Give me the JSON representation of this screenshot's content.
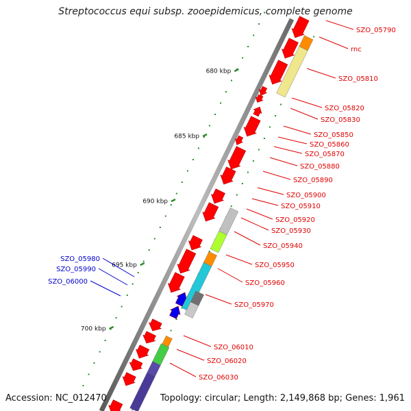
{
  "title": "Streptococcus equi subsp. zooepidemicus, complete genome",
  "footer": {
    "accession": "Accession: NC_012470",
    "summary": "Topology: circular; Length: 2,149,868 bp; Genes: 1,961"
  },
  "colors": {
    "backbone": "#8c8c8c",
    "gene_arrow": "#ff0000",
    "tick": "#2a8a2a",
    "label_forward": "#e00000",
    "label_reverse": "#0000cc",
    "leader_forward": "#e00000",
    "leader_reverse": "#0000cc"
  },
  "scale_ticks": [
    "680 kbp",
    "685 kbp",
    "690 kbp",
    "695 kbp",
    "700 kbp"
  ],
  "gene_labels_right": [
    "SZO_05790",
    "rnc",
    "SZO_05810",
    "SZO_05820",
    "SZO_05830",
    "SZO_05850",
    "SZO_05860",
    "SZO_05870",
    "SZO_05880",
    "SZO_05890",
    "SZO_05900",
    "SZO_05910",
    "SZO_05920",
    "SZO_05930",
    "SZO_05940",
    "SZO_05950",
    "SZO_05960",
    "SZO_05970",
    "SZO_06010",
    "SZO_06020",
    "SZO_06030"
  ],
  "gene_labels_left": [
    "SZO_05980",
    "SZO_05990",
    "SZO_06000"
  ]
}
